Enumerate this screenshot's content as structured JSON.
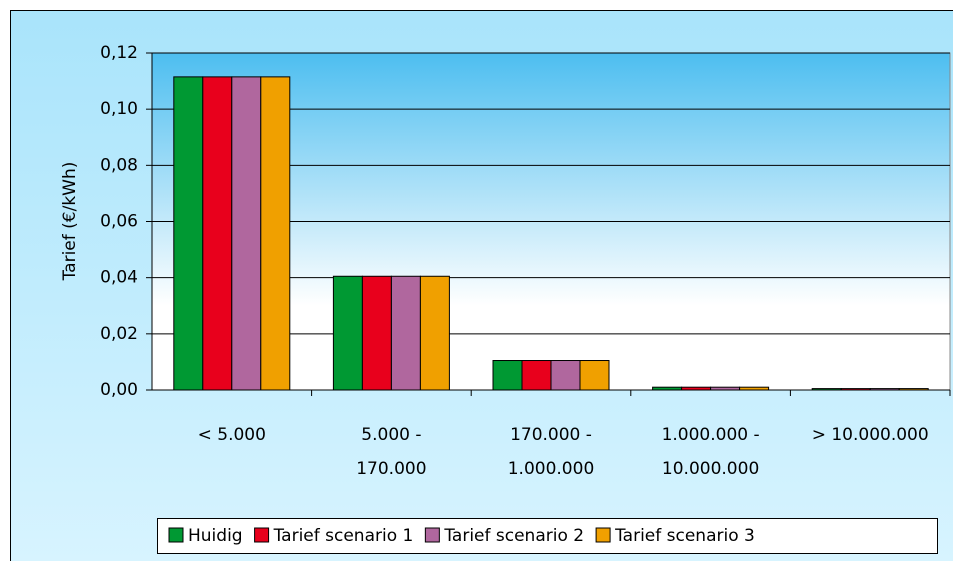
{
  "chart_data": {
    "type": "bar",
    "y_label": "Tarief (€/kWh)",
    "categories": [
      [
        "< 5.000"
      ],
      [
        "5.000 -",
        "170.000"
      ],
      [
        "170.000 -",
        "1.000.000"
      ],
      [
        "1.000.000 -",
        "10.000.000"
      ],
      [
        "> 10.000.000"
      ]
    ],
    "series": [
      {
        "name": "Huidig",
        "color": "#009933",
        "values": [
          0.1115,
          0.0405,
          0.0105,
          0.001,
          0.0005
        ]
      },
      {
        "name": "Tarief scenario 1",
        "color": "#e8001c",
        "values": [
          0.1115,
          0.0405,
          0.0105,
          0.001,
          0.0005
        ]
      },
      {
        "name": "Tarief scenario 2",
        "color": "#b0679e",
        "values": [
          0.1115,
          0.0405,
          0.0105,
          0.001,
          0.0005
        ]
      },
      {
        "name": "Tarief scenario 3",
        "color": "#f0a000",
        "values": [
          0.1115,
          0.0405,
          0.0105,
          0.001,
          0.0005
        ]
      }
    ],
    "ylim": [
      0,
      0.12
    ],
    "yticks": [
      {
        "value": 0,
        "label": "0,00"
      },
      {
        "value": 0.02,
        "label": "0,02"
      },
      {
        "value": 0.04,
        "label": "0,04"
      },
      {
        "value": 0.06,
        "label": "0,06"
      },
      {
        "value": 0.08,
        "label": "0,08"
      },
      {
        "value": 0.1,
        "label": "0,10"
      },
      {
        "value": 0.12,
        "label": "0,12"
      }
    ],
    "grid": true,
    "legend": "bottom"
  }
}
